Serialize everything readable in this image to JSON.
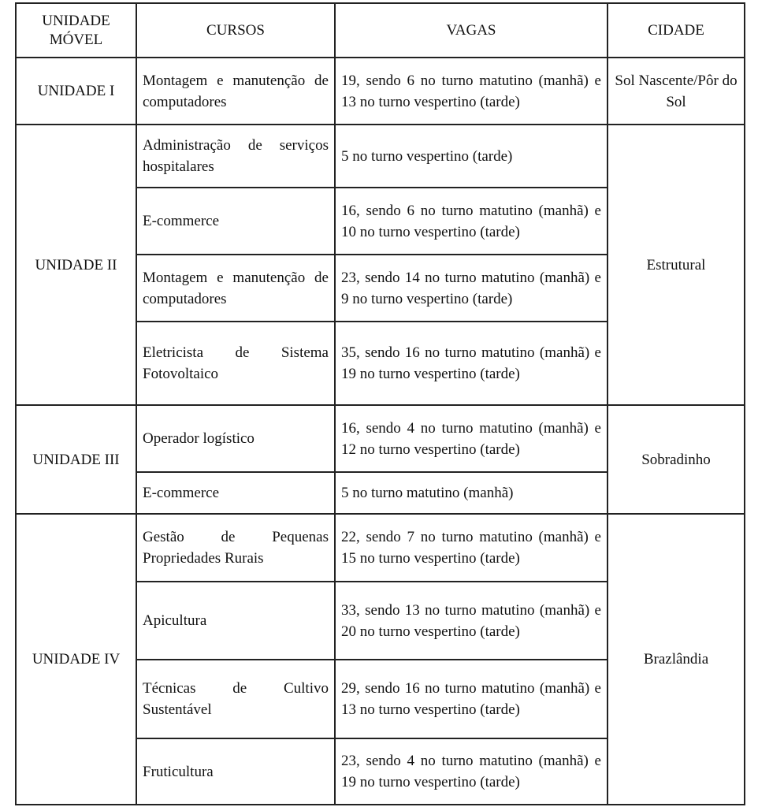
{
  "headers": {
    "unidade": "UNIDADE MÓVEL",
    "cursos": "CURSOS",
    "vagas": "VAGAS",
    "cidade": "CIDADE"
  },
  "groups": [
    {
      "unidade": "UNIDADE I",
      "cidade": "Sol Nascente/Pôr do Sol",
      "rows": [
        {
          "curso": "Montagem e manutenção de computadores",
          "vagas": "19, sendo 6 no turno matutino (manhã) e 13 no turno vespertino (tarde)"
        }
      ]
    },
    {
      "unidade": "UNIDADE II",
      "cidade": "Estrutural",
      "rows": [
        {
          "curso": "Administração de serviços hospitalares",
          "vagas": "5 no turno vespertino (tarde)"
        },
        {
          "curso": "E-commerce",
          "vagas": "16, sendo 6 no turno matutino (manhã) e 10 no turno vespertino (tarde)"
        },
        {
          "curso": "Montagem e manutenção de computadores",
          "vagas": "23, sendo 14 no turno matutino (manhã) e 9 no turno vespertino (tarde)"
        },
        {
          "curso": "Eletricista de Sistema Fotovoltaico",
          "vagas": "35, sendo 16 no turno matutino (manhã) e 19 no turno vespertino (tarde)"
        }
      ]
    },
    {
      "unidade": "UNIDADE III",
      "cidade": "Sobradinho",
      "rows": [
        {
          "curso": "Operador logístico",
          "vagas": "16, sendo 4 no turno matutino (manhã) e 12 no turno vespertino (tarde)"
        },
        {
          "curso": "E-commerce",
          "vagas": "5 no turno matutino (manhã)"
        }
      ]
    },
    {
      "unidade": "UNIDADE IV",
      "cidade": "Brazlândia",
      "rows": [
        {
          "curso": "Gestão de Pequenas Propriedades Rurais",
          "vagas": "22, sendo 7 no turno matutino (manhã) e 15 no turno vespertino (tarde)"
        },
        {
          "curso": "Apicultura",
          "vagas": "33, sendo 13 no turno matutino (manhã) e 20 no turno vespertino (tarde)"
        },
        {
          "curso": "Técnicas de Cultivo Sustentável",
          "vagas": "29, sendo 16 no turno matutino (manhã) e 13 no turno vespertino (tarde)"
        },
        {
          "curso": "Fruticultura",
          "vagas": "23, sendo 4 no turno matutino (manhã) e 19 no turno vespertino (tarde)"
        }
      ]
    }
  ]
}
